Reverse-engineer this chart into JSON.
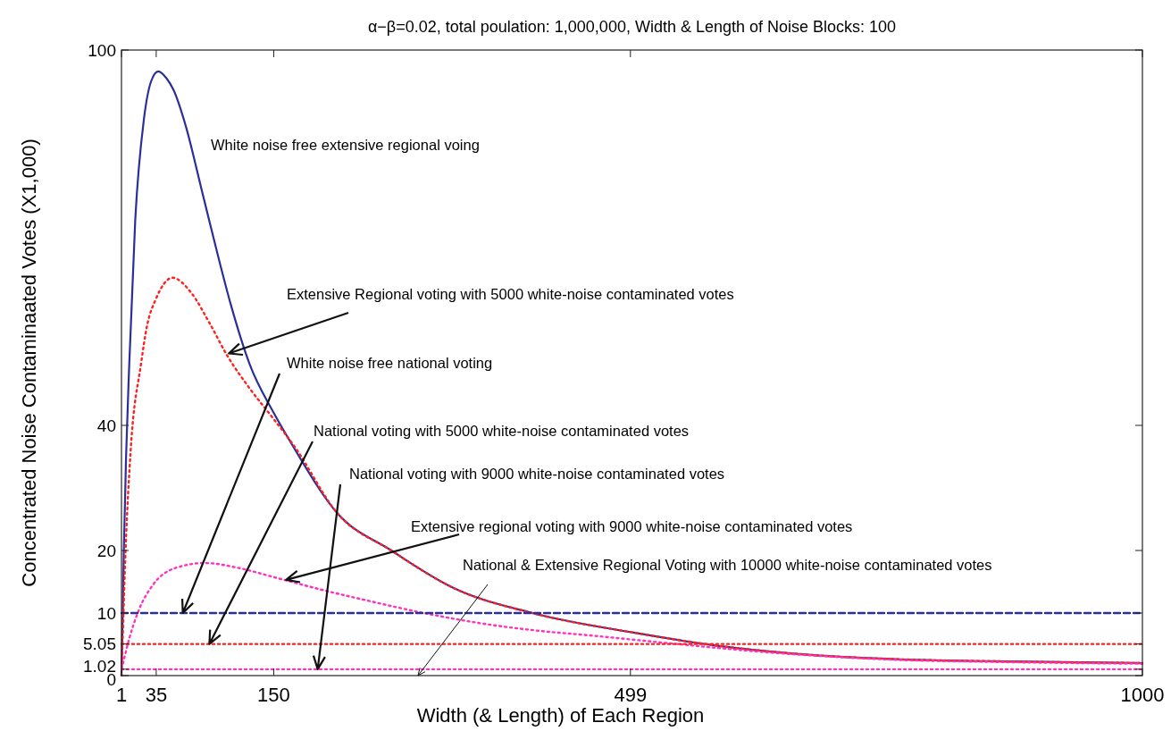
{
  "chart_data": {
    "type": "line",
    "title": "α−β=0.02, total poulation: 1,000,000, Width & Length of Noise Blocks: 100",
    "xlabel": "Width (& Length) of Each Region",
    "ylabel": "Concentrated Noise Contaminaated Votes (X1,000)",
    "xlim": [
      1,
      1000
    ],
    "xticks": [
      1,
      35,
      150,
      499,
      1000
    ],
    "ylim": [
      0,
      100
    ],
    "yticks": [
      0,
      1.02,
      5.05,
      10,
      20,
      40,
      100
    ],
    "grid": false,
    "series": [
      {
        "color": "#2b2f9a",
        "line_style": "solid",
        "x": [
          1,
          2,
          3.3,
          5.5,
          8.6,
          14.4,
          23,
          30,
          37,
          45,
          52,
          64,
          78.5,
          93,
          108,
          126.6,
          150,
          168,
          212,
          265,
          326,
          403,
          501,
          588,
          676,
          763,
          851,
          1000
        ],
        "values": [
          0,
          8,
          20,
          35,
          49.7,
          72.6,
          89,
          95,
          96.6,
          95.5,
          93.6,
          87.8,
          78.3,
          68.7,
          59.3,
          49.7,
          42,
          36.9,
          26,
          20,
          14,
          10,
          6.9,
          4.7,
          3.3,
          2.6,
          2.3,
          2
        ]
      },
      {
        "color": "#ff2020",
        "line_style": "dotted",
        "x": [
          1,
          2,
          5,
          10,
          20,
          26,
          34.7,
          51,
          69.7,
          87,
          104.7,
          126,
          150,
          170,
          212,
          265,
          326,
          403,
          501,
          588,
          676,
          763,
          851,
          1000
        ],
        "values": [
          0,
          5,
          20,
          36,
          49.7,
          55.9,
          60.2,
          63.6,
          61.1,
          56.4,
          51.1,
          46,
          41,
          36.7,
          26,
          20,
          14,
          10,
          6.9,
          4.7,
          3.3,
          2.6,
          2.3,
          2
        ]
      },
      {
        "color": "#ff33bb",
        "line_style": "dotted",
        "x": [
          1.3,
          8.6,
          17.3,
          31.8,
          52,
          82.7,
          113,
          151,
          195,
          238.8,
          297,
          355,
          413,
          461,
          535,
          643,
          763,
          851,
          1000
        ],
        "values": [
          1.1,
          5.9,
          10.2,
          14.5,
          17.1,
          18,
          17.3,
          15.7,
          13.8,
          12.1,
          10,
          8.3,
          7.1,
          6.4,
          5.2,
          3.6,
          2.5,
          2.2,
          1.9
        ]
      },
      {
        "color": "#2b2f9a",
        "line_style": "dashed",
        "x": [
          1,
          1000
        ],
        "values": [
          10,
          10
        ]
      },
      {
        "color": "#ff2020",
        "line_style": "dotted",
        "x": [
          1,
          1000
        ],
        "values": [
          5.05,
          5.05
        ]
      },
      {
        "color": "#ff33bb",
        "line_style": "dotted",
        "x": [
          1,
          1000
        ],
        "values": [
          1.02,
          1.02
        ]
      }
    ],
    "annotations": [
      "White noise free extensive regional voing",
      {
        "text": "Extensive Regional voting with 5000 white-noise contaminated votes",
        "x": 106,
        "y": 51.5
      },
      {
        "text": "White noise free national voting",
        "x": 61,
        "y": 10
      },
      {
        "text": "National voting with 5000 white-noise contaminated votes",
        "x": 87,
        "y": 5.05
      },
      {
        "text": "National voting with 9000 white-noise contaminated votes",
        "x": 193,
        "y": 1.02
      },
      {
        "text": "Extensive regional voting with 9000 white-noise contaminated votes",
        "x": 162,
        "y": 15.3
      },
      "National & Extensive Regional Voting with 10000 white-noise contaminated votes"
    ]
  }
}
